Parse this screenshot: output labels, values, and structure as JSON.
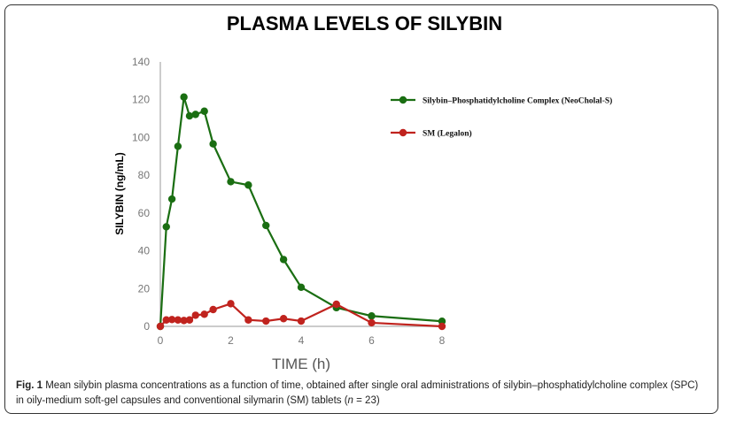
{
  "chart_data": {
    "type": "line",
    "title": "PLASMA LEVELS OF SILYBIN",
    "xlabel": "TIME (h)",
    "ylabel": "SILYBIN (ng/mL)",
    "xlim": [
      0,
      8
    ],
    "ylim": [
      0,
      140
    ],
    "xticks": [
      0,
      2,
      4,
      6,
      8
    ],
    "yticks": [
      0,
      20,
      40,
      60,
      80,
      100,
      120,
      140
    ],
    "grid": false,
    "legend_position": "right",
    "x": [
      0,
      0.17,
      0.33,
      0.5,
      0.67,
      0.83,
      1,
      1.25,
      1.5,
      2,
      2.5,
      3,
      3.5,
      4,
      5,
      6,
      8
    ],
    "series": [
      {
        "name": "Silybin–Phosphatidylcholine Complex (NeoCholal-S)",
        "color": "#1a6e12",
        "values": [
          0,
          52.7,
          67.4,
          95.3,
          121.4,
          111.4,
          112.2,
          113.9,
          96.6,
          76.6,
          74.8,
          53.4,
          35.4,
          20.7,
          9.9,
          5.5,
          2.7
        ]
      },
      {
        "name": "SM (Legalon)",
        "color": "#c0231e",
        "values": [
          0,
          3.4,
          3.6,
          3.4,
          3.1,
          3.4,
          5.9,
          6.4,
          8.9,
          12.0,
          3.4,
          2.8,
          4.1,
          2.8,
          11.7,
          1.9,
          0
        ]
      }
    ]
  },
  "caption": {
    "label": "Fig. 1",
    "text": " Mean silybin plasma concentrations as a function of time, obtained after single oral administrations of silybin–phosphatidylcholine complex (SPC) in oily-medium soft-gel capsules and conventional silymarin (SM) tablets (",
    "n_var": "n",
    "n_value": " = 23)"
  }
}
